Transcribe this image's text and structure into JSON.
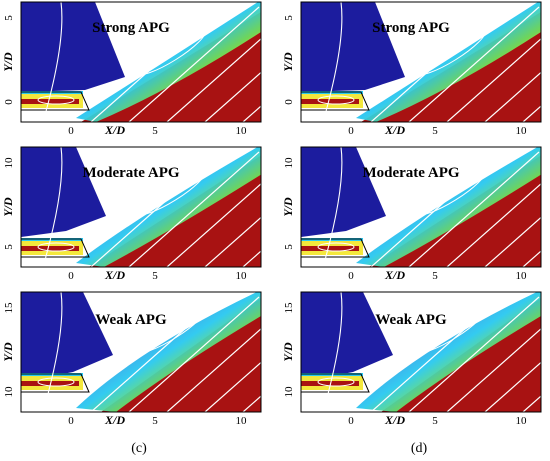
{
  "figure": {
    "columns": [
      {
        "caption": "(c)",
        "panels": [
          {
            "title": "Strong APG",
            "ylabel": "Y/D",
            "xlabel": "X/D",
            "yticks": [
              "0",
              "5"
            ],
            "xticks": [
              "0",
              "5",
              "10"
            ]
          },
          {
            "title": "Moderate APG",
            "ylabel": "Y/D",
            "xlabel": "X/D",
            "yticks": [
              "5",
              "10"
            ],
            "xticks": [
              "0",
              "5",
              "10"
            ]
          },
          {
            "title": "Weak APG",
            "ylabel": "Y/D",
            "xlabel": "X/D",
            "yticks": [
              "10",
              "15"
            ],
            "xticks": [
              "0",
              "5",
              "10"
            ]
          }
        ]
      },
      {
        "caption": "(d)",
        "panels": [
          {
            "title": "Strong APG",
            "ylabel": "Y/D",
            "xlabel": "X/D",
            "yticks": [
              "0",
              "5"
            ],
            "xticks": [
              "0",
              "5",
              "10"
            ]
          },
          {
            "title": "Moderate APG",
            "ylabel": "Y/D",
            "xlabel": "X/D",
            "yticks": [
              "5",
              "10"
            ],
            "xticks": [
              "0",
              "5",
              "10"
            ]
          },
          {
            "title": "Weak APG",
            "ylabel": "Y/D",
            "xlabel": "X/D",
            "yticks": [
              "10",
              "15"
            ],
            "xticks": [
              "0",
              "5",
              "10"
            ]
          }
        ]
      }
    ],
    "colors": {
      "wall_blue": "#1c1c9e",
      "jet_red": "#a81212",
      "band_cyan": "#29c8f0",
      "band_green": "#6ee05a",
      "band_yellow": "#f4e83c",
      "band_orange": "#f07820",
      "band_lightblue": "#3f8fe6",
      "streamline": "#ffffff"
    }
  }
}
